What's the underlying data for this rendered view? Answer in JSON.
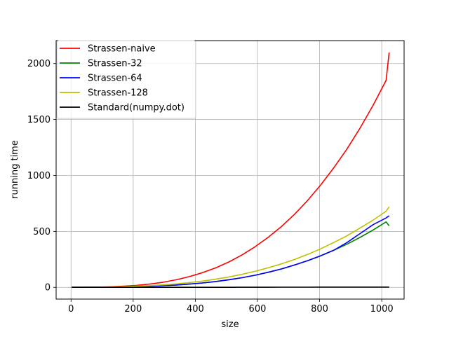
{
  "chart_data": {
    "type": "line",
    "title": "",
    "xlabel": "size",
    "ylabel": "running time",
    "xlim": [
      -48,
      1072
    ],
    "ylim": [
      -105,
      2205
    ],
    "xticks": [
      0,
      200,
      400,
      600,
      800,
      1000
    ],
    "yticks": [
      0,
      500,
      1000,
      1500,
      2000
    ],
    "grid": true,
    "legend_position": "upper left",
    "x": [
      2,
      44,
      86,
      128,
      170,
      212,
      255,
      297,
      339,
      381,
      423,
      466,
      508,
      550,
      592,
      634,
      677,
      719,
      761,
      803,
      845,
      888,
      930,
      972,
      1014,
      1024
    ],
    "series": [
      {
        "name": "Strassen-naive",
        "color": "#ff0000",
        "values": [
          0,
          0.2,
          2,
          5,
          10,
          18,
          30,
          46,
          68,
          96,
          131,
          174,
          227,
          289,
          362,
          446,
          543,
          652,
          775,
          913,
          1066,
          1236,
          1422,
          1626,
          1849,
          2100
        ]
      },
      {
        "name": "Strassen-32",
        "color": "#008000",
        "values": [
          0,
          0.1,
          0.5,
          2,
          4,
          6,
          10,
          15,
          21,
          29,
          39,
          52,
          68,
          86,
          108,
          134,
          164,
          199,
          238,
          282,
          331,
          385,
          446,
          512,
          585,
          550
        ]
      },
      {
        "name": "Strassen-64",
        "color": "#0000ff",
        "values": [
          0,
          0.1,
          0.5,
          2,
          4,
          6,
          10,
          15,
          21,
          29,
          39,
          52,
          68,
          86,
          108,
          134,
          164,
          199,
          238,
          282,
          331,
          400,
          480,
          560,
          620,
          640
        ]
      },
      {
        "name": "Strassen-128",
        "color": "#bfbf00",
        "values": [
          0,
          0.1,
          1,
          3,
          6,
          10,
          15,
          22,
          31,
          42,
          56,
          73,
          93,
          116,
          143,
          174,
          209,
          249,
          294,
          344,
          400,
          460,
          530,
          600,
          680,
          720
        ]
      },
      {
        "name": "Standard(numpy.dot)",
        "color": "#000000",
        "values": [
          0,
          0,
          0,
          0,
          0,
          0,
          0,
          0,
          0.1,
          0.1,
          0.2,
          0.3,
          0.4,
          0.6,
          0.8,
          1,
          1.2,
          1.4,
          1.6,
          1.8,
          2,
          2.1,
          2.2,
          2.2,
          2.2,
          2.2
        ]
      }
    ]
  }
}
